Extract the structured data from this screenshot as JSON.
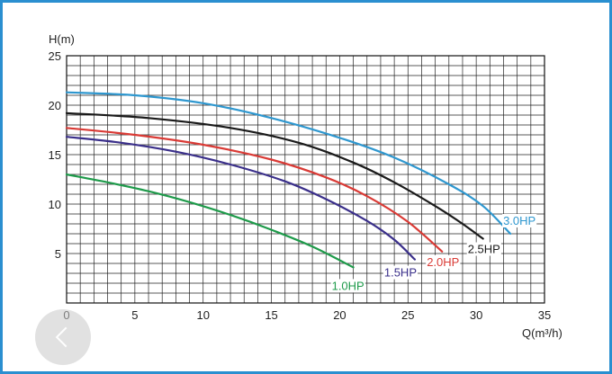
{
  "chart_data": {
    "type": "line",
    "title": "",
    "xlabel": "Q(m³/h)",
    "ylabel": "H(m)",
    "xlim": [
      0,
      35
    ],
    "ylim": [
      0,
      25
    ],
    "x_ticks": [
      "0",
      "5",
      "10",
      "15",
      "20",
      "25",
      "30",
      "35"
    ],
    "y_ticks": [
      "5",
      "10",
      "15",
      "20",
      "25"
    ],
    "grid": true,
    "series": [
      {
        "name": "1.0HP",
        "color": "#1e9a4a",
        "points": [
          [
            0,
            13.0
          ],
          [
            3,
            12.2
          ],
          [
            6,
            11.3
          ],
          [
            9,
            10.2
          ],
          [
            12,
            8.9
          ],
          [
            15,
            7.4
          ],
          [
            18,
            5.7
          ],
          [
            21,
            3.6
          ]
        ]
      },
      {
        "name": "1.5HP",
        "color": "#3a2f8a",
        "points": [
          [
            0,
            16.8
          ],
          [
            4,
            16.2
          ],
          [
            8,
            15.3
          ],
          [
            12,
            14.0
          ],
          [
            16,
            12.3
          ],
          [
            19,
            10.5
          ],
          [
            22,
            8.3
          ],
          [
            24,
            6.4
          ],
          [
            25.5,
            4.4
          ]
        ]
      },
      {
        "name": "2.0HP",
        "color": "#d93a35",
        "points": [
          [
            0,
            17.7
          ],
          [
            5,
            17.0
          ],
          [
            10,
            16.0
          ],
          [
            15,
            14.5
          ],
          [
            19,
            12.7
          ],
          [
            22,
            10.8
          ],
          [
            25,
            8.2
          ],
          [
            27.5,
            5.2
          ]
        ]
      },
      {
        "name": "2.5HP",
        "color": "#1a1a1a",
        "points": [
          [
            0,
            19.2
          ],
          [
            6,
            18.7
          ],
          [
            12,
            17.7
          ],
          [
            17,
            16.2
          ],
          [
            21,
            14.2
          ],
          [
            24,
            12.2
          ],
          [
            27,
            9.8
          ],
          [
            29,
            8.0
          ],
          [
            30.5,
            6.5
          ]
        ]
      },
      {
        "name": "3.0HP",
        "color": "#2e97cf",
        "points": [
          [
            0,
            21.3
          ],
          [
            5,
            21.0
          ],
          [
            10,
            20.2
          ],
          [
            15,
            18.7
          ],
          [
            20,
            16.7
          ],
          [
            24,
            14.7
          ],
          [
            28,
            12.0
          ],
          [
            30.5,
            9.8
          ],
          [
            32.5,
            7.0
          ]
        ]
      }
    ]
  }
}
